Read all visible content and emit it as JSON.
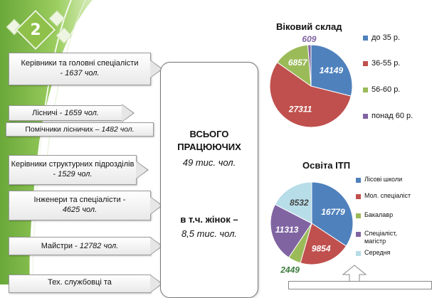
{
  "slide_number": "2",
  "left_items": [
    {
      "name": "Керівники та головні спеціалісти",
      "count": "1637 чол."
    },
    {
      "name": "Лісничі",
      "count": "1659 чол."
    },
    {
      "name": "Помічники лісничих",
      "count": "1482 чол."
    },
    {
      "name": "Керівники структурних підрозділів",
      "count": "1529 чол."
    },
    {
      "name": "Інженери та спеціалісти",
      "count": "4625 чол."
    },
    {
      "name": "Майстри",
      "count": "12782 чол."
    },
    {
      "name": "Тех. службовці та"
    }
  ],
  "center": {
    "total_label": "ВСЬОГО ПРАЦЮЮЧИХ",
    "total_value": "49 тис. чол.",
    "women_label": "в т.ч. жінок –",
    "women_value": "8,5 тис. чол."
  },
  "chart_data": [
    {
      "type": "pie",
      "title": "Віковий склад",
      "legend_position": "right",
      "categories": [
        "до 35 р.",
        "36-55 р.",
        "56-60 р.",
        "понад 60 р."
      ],
      "values": [
        14149,
        27311,
        6857,
        609
      ],
      "labels": [
        "14149",
        "27311",
        "6857",
        "609"
      ],
      "colors": [
        "#4f81bd",
        "#c0504d",
        "#9bbb59",
        "#8064a2"
      ]
    },
    {
      "type": "pie",
      "title": "Освіта ІТП",
      "legend_position": "right",
      "categories": [
        "Лісові школи",
        "Мол. спеціаліст",
        "Бакалавр",
        "Спеціаліст, магістр",
        "Середня"
      ],
      "values": [
        16779,
        9854,
        2449,
        11313,
        8532
      ],
      "labels": [
        "16779",
        "9854",
        "2449",
        "11313",
        "8532"
      ],
      "colors": [
        "#4f81bd",
        "#c0504d",
        "#9bbb59",
        "#8064a2",
        "#b7dde8"
      ]
    }
  ]
}
